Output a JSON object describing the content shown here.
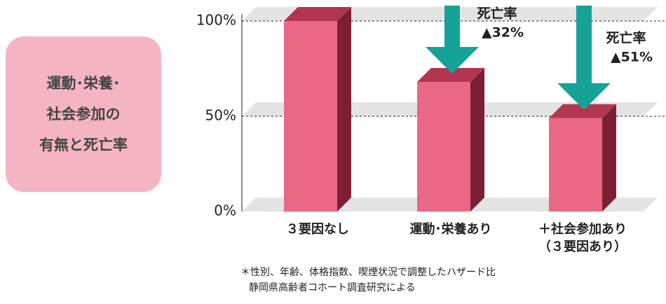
{
  "chart_data": {
    "type": "bar3d",
    "title_lines": [
      "運動･栄養･",
      "社会参加の",
      "有無と死亡率"
    ],
    "categories": [
      "３要因なし",
      "運動･栄養あり",
      "＋社会参加あり"
    ],
    "category_sublabels": [
      null,
      null,
      "（３要因あり）"
    ],
    "values": [
      100,
      68,
      49
    ],
    "color": "#ea6785",
    "ylim": [
      0,
      100
    ],
    "yticks": [
      {
        "value": 0,
        "label": "0%"
      },
      {
        "value": 50,
        "label": "50%"
      },
      {
        "value": 100,
        "label": "100%"
      }
    ],
    "grid": true,
    "annotations": [
      null,
      {
        "text": "死亡率",
        "change": -32,
        "change_label": "▲32%"
      },
      {
        "text": "死亡率",
        "change": -51,
        "change_label": "▲51%"
      }
    ],
    "arrow_color": "#15a297",
    "footnotes": [
      "＊性別、年齢、体格指数、喫煙状況で調整したハザード比",
      "静岡県高齢者コホート調査研究による"
    ]
  }
}
